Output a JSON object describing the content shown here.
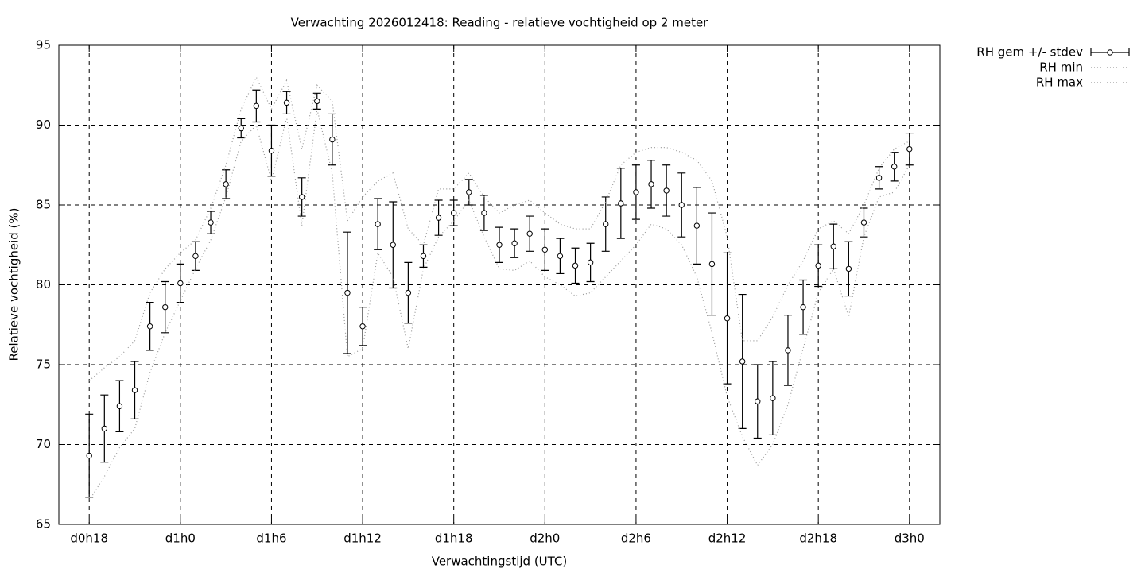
{
  "chart_data": {
    "type": "errorbar",
    "title": "Verwachting 2026012418: Reading - relatieve vochtigheid op 2 meter",
    "xlabel": "Verwachtingstijd (UTC)",
    "ylabel": "Relatieve vochtigheid (%)",
    "x": [
      18,
      19,
      20,
      21,
      22,
      23,
      24,
      25,
      26,
      27,
      28,
      29,
      30,
      31,
      32,
      33,
      34,
      35,
      36,
      37,
      38,
      39,
      40,
      41,
      42,
      43,
      44,
      45,
      46,
      47,
      48,
      49,
      50,
      51,
      52,
      53,
      54,
      55,
      56,
      57,
      58,
      59,
      60,
      61,
      62,
      63,
      64,
      65,
      66,
      67,
      68,
      69,
      70,
      71,
      72
    ],
    "xlim": [
      16,
      74
    ],
    "xticks": [
      {
        "value": 18,
        "label": "d0h18"
      },
      {
        "value": 24,
        "label": "d1h0"
      },
      {
        "value": 30,
        "label": "d1h6"
      },
      {
        "value": 36,
        "label": "d1h12"
      },
      {
        "value": 42,
        "label": "d1h18"
      },
      {
        "value": 48,
        "label": "d2h0"
      },
      {
        "value": 54,
        "label": "d2h6"
      },
      {
        "value": 60,
        "label": "d2h12"
      },
      {
        "value": 66,
        "label": "d2h18"
      },
      {
        "value": 72,
        "label": "d3h0"
      }
    ],
    "ylim": [
      65,
      95
    ],
    "yticks": [
      65,
      70,
      75,
      80,
      85,
      90,
      95
    ],
    "grid": true,
    "legend": "outside-top-right",
    "series": [
      {
        "name": "RH gem +/- stdev",
        "style": "errorbar",
        "color": "#000000",
        "values": [
          69.3,
          71.0,
          72.4,
          73.4,
          77.4,
          78.6,
          80.1,
          81.8,
          83.9,
          86.3,
          89.8,
          91.2,
          88.4,
          91.4,
          85.5,
          91.5,
          89.1,
          79.5,
          77.4,
          83.8,
          82.5,
          79.5,
          81.8,
          84.2,
          84.5,
          85.8,
          84.5,
          82.5,
          82.6,
          83.2,
          82.2,
          81.8,
          81.2,
          81.4,
          83.8,
          85.1,
          85.8,
          86.3,
          85.9,
          85.0,
          83.7,
          81.3,
          77.9,
          75.2,
          72.7,
          72.9,
          75.9,
          78.6,
          81.2,
          82.4,
          81.0,
          83.9,
          86.7,
          87.4,
          88.5
        ],
        "errors": [
          2.6,
          2.1,
          1.6,
          1.8,
          1.5,
          1.6,
          1.2,
          0.9,
          0.7,
          0.9,
          0.6,
          1.0,
          1.6,
          0.7,
          1.2,
          0.5,
          1.6,
          3.8,
          1.2,
          1.6,
          2.7,
          1.9,
          0.7,
          1.1,
          0.8,
          0.8,
          1.1,
          1.1,
          0.9,
          1.1,
          1.3,
          1.1,
          1.1,
          1.2,
          1.7,
          2.2,
          1.7,
          1.5,
          1.6,
          2.0,
          2.4,
          3.2,
          4.1,
          4.2,
          2.3,
          2.3,
          2.2,
          1.7,
          1.3,
          1.4,
          1.7,
          0.9,
          0.7,
          0.9,
          1.0
        ]
      },
      {
        "name": "RH min",
        "style": "dotted",
        "color": "#999999",
        "values": [
          66.5,
          68,
          69.8,
          71,
          74.5,
          77,
          79,
          81,
          82.8,
          85.5,
          89,
          90,
          86.5,
          90.5,
          83.7,
          91,
          87,
          75.5,
          76,
          82,
          80.5,
          76,
          81,
          83,
          84,
          85.3,
          83,
          81,
          80.9,
          81.5,
          80.5,
          80,
          79.3,
          79.5,
          80.5,
          81.5,
          82.5,
          83.8,
          83.5,
          82.5,
          80.5,
          77,
          73,
          70.5,
          68.7,
          70,
          72.5,
          76,
          79.5,
          81,
          78,
          83,
          85.5,
          85.8,
          87.5
        ]
      },
      {
        "name": "RH max",
        "style": "dotted",
        "color": "#999999",
        "values": [
          74,
          74.8,
          75.5,
          76.5,
          79.5,
          81,
          82,
          82.8,
          84.8,
          87.5,
          91,
          93,
          91,
          92.8,
          88.5,
          92.5,
          91.5,
          84,
          85.5,
          86.5,
          87,
          83.5,
          82.5,
          86,
          86,
          87,
          85.5,
          84.5,
          85,
          85.3,
          84.5,
          83.8,
          83.5,
          83.5,
          85.2,
          87.5,
          88.3,
          88.6,
          88.6,
          88.3,
          87.8,
          86.5,
          83,
          76.5,
          76.5,
          78,
          80,
          81.5,
          83.5,
          84,
          83.2,
          85,
          87.3,
          88.5,
          89
        ]
      }
    ]
  }
}
